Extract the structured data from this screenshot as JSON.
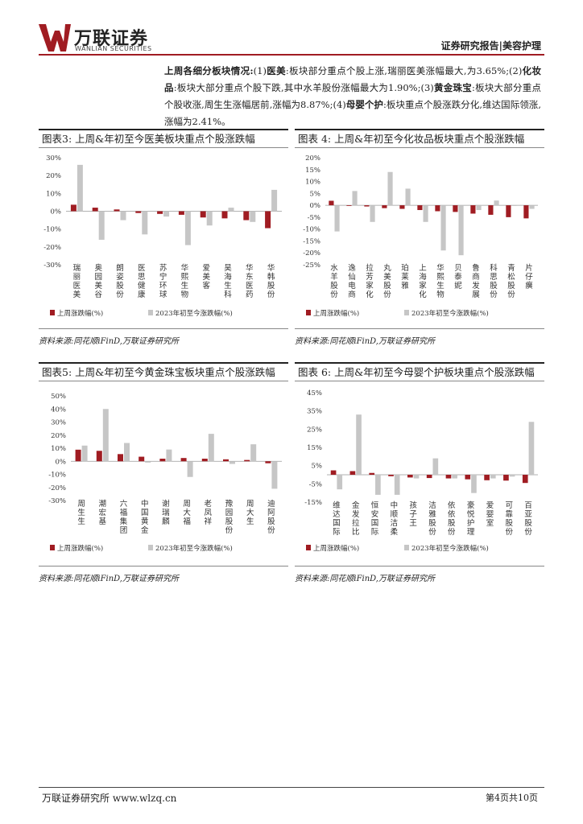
{
  "header": {
    "logo_cn": "万联证券",
    "logo_en": "WANLIAN SECURITIES",
    "report_type": "证券研究报告|美容护理"
  },
  "paragraph": {
    "p1": "上周各细分板块情况:",
    "p2": "(1)",
    "p3": "医美",
    "p4": ":板块部分重点个股上涨,瑞丽医美涨幅最大,为3.65%;(2)",
    "p5": "化妆品",
    "p6": ":板块大部分重点个股下跌,其中水羊股份涨幅最大为1.90%;(3)",
    "p7": "黄金珠宝",
    "p8": ":板块大部分重点个股收涨,周生生涨幅居前,涨幅为8.87%;(4)",
    "p9": "母婴个护",
    "p10": ":板块重点个股涨跌分化,维达国际领涨,涨幅为2.41%。"
  },
  "legend": {
    "week": "上周涨跌幅(%)",
    "ytd": "2023年初至今涨跌幅(%)"
  },
  "source": "资料来源:同花顺iFinD,万联证券研究所",
  "colors": {
    "week": "#a01c22",
    "ytd": "#c6c6c6",
    "accent": "#a01c22"
  },
  "figures": [
    {
      "title": "图表3: 上周&年初至今医美板块重点个股涨跌幅",
      "chart_data": {
        "type": "bar",
        "categories": [
          "瑞丽医美",
          "奥园美谷",
          "朗姿股份",
          "医思健康",
          "苏宁环球",
          "华熙生物",
          "爱美客",
          "昊海生科",
          "华东医药",
          "华韩股份"
        ],
        "series": [
          {
            "name": "上周涨跌幅(%)",
            "values": [
              3.65,
              2.0,
              1.0,
              -1.0,
              -1.5,
              -2.0,
              -3.5,
              -4.0,
              -5.0,
              -9.5
            ]
          },
          {
            "name": "2023年初至今涨跌幅(%)",
            "values": [
              26,
              -16,
              -5,
              -13,
              -3,
              -19,
              -8,
              2,
              -6,
              12
            ]
          }
        ],
        "ylim": [
          -30,
          30
        ],
        "yticks": [
          "30%",
          "20%",
          "10%",
          "0%",
          "-10%",
          "-20%",
          "-30%"
        ]
      }
    },
    {
      "title": "图表 4: 上周&年初至今化妆品板块重点个股涨跌幅",
      "chart_data": {
        "type": "bar",
        "categories": [
          "水羊股份",
          "逸仙电商",
          "拉芳家化",
          "丸美股份",
          "珀莱雅",
          "上海家化",
          "华熙生物",
          "贝泰妮",
          "鲁商发展",
          "科思股份",
          "青松股份",
          "片仔癀"
        ],
        "series": [
          {
            "name": "上周涨跌幅(%)",
            "values": [
              1.9,
              -0.2,
              -0.5,
              -1.2,
              -1.5,
              -2.0,
              -2.5,
              -2.8,
              -3.5,
              -4.0,
              -5.0,
              -5.5
            ]
          },
          {
            "name": "2023年初至今涨跌幅(%)",
            "values": [
              -11,
              6,
              -7,
              14,
              7,
              -7,
              -19,
              -21,
              -2,
              2,
              0,
              -1.5
            ]
          }
        ],
        "ylim": [
          -25,
          20
        ],
        "yticks": [
          "20%",
          "15%",
          "10%",
          "5%",
          "0%",
          "-5%",
          "-10%",
          "-15%",
          "-20%",
          "-25%"
        ]
      }
    },
    {
      "title": "图表5: 上周&年初至今黄金珠宝板块重点个股涨跌幅",
      "chart_data": {
        "type": "bar",
        "categories": [
          "周生生",
          "潮宏基",
          "六福集团",
          "中国黄金",
          "谢瑞麟",
          "周大福",
          "老凤祥",
          "豫园股份",
          "周大生",
          "迪阿股份"
        ],
        "series": [
          {
            "name": "上周涨跌幅(%)",
            "values": [
              8.87,
              8.0,
              5.5,
              3.5,
              2.0,
              2.5,
              2.0,
              1.5,
              1.0,
              -1.5
            ]
          },
          {
            "name": "2023年初至今涨跌幅(%)",
            "values": [
              12,
              40,
              14,
              -1,
              9,
              -12,
              21,
              -2,
              13,
              -21
            ]
          }
        ],
        "ylim": [
          -30,
          50
        ],
        "yticks": [
          "50%",
          "40%",
          "30%",
          "20%",
          "10%",
          "0%",
          "-10%",
          "-20%",
          "-30%"
        ]
      }
    },
    {
      "title": "图表 6: 上周&年初至今母婴个护板块重点个股涨跌幅",
      "chart_data": {
        "type": "bar",
        "categories": [
          "维达国际",
          "金发拉比",
          "恒安国际",
          "中顺洁柔",
          "孩子王",
          "洁雅股份",
          "依依股份",
          "豪悦护理",
          "爱婴室",
          "可靠股份",
          "百亚股份"
        ],
        "series": [
          {
            "name": "上周涨跌幅(%)",
            "values": [
              2.41,
              2.0,
              1.0,
              -0.8,
              -1.5,
              -1.8,
              -2.0,
              -2.5,
              -3.0,
              -3.2,
              -4.5
            ]
          },
          {
            "name": "2023年初至今涨跌幅(%)",
            "values": [
              -8,
              33,
              -11,
              -11,
              -2,
              9,
              -2,
              -10,
              -2,
              -1,
              29
            ]
          }
        ],
        "ylim": [
          -15,
          45
        ],
        "yticks": [
          "45%",
          "35%",
          "25%",
          "15%",
          "5%",
          "-5%",
          "-15%"
        ]
      }
    }
  ],
  "footer": {
    "left": "万联证券研究所 www.wlzq.cn",
    "right": "第4页共10页"
  }
}
